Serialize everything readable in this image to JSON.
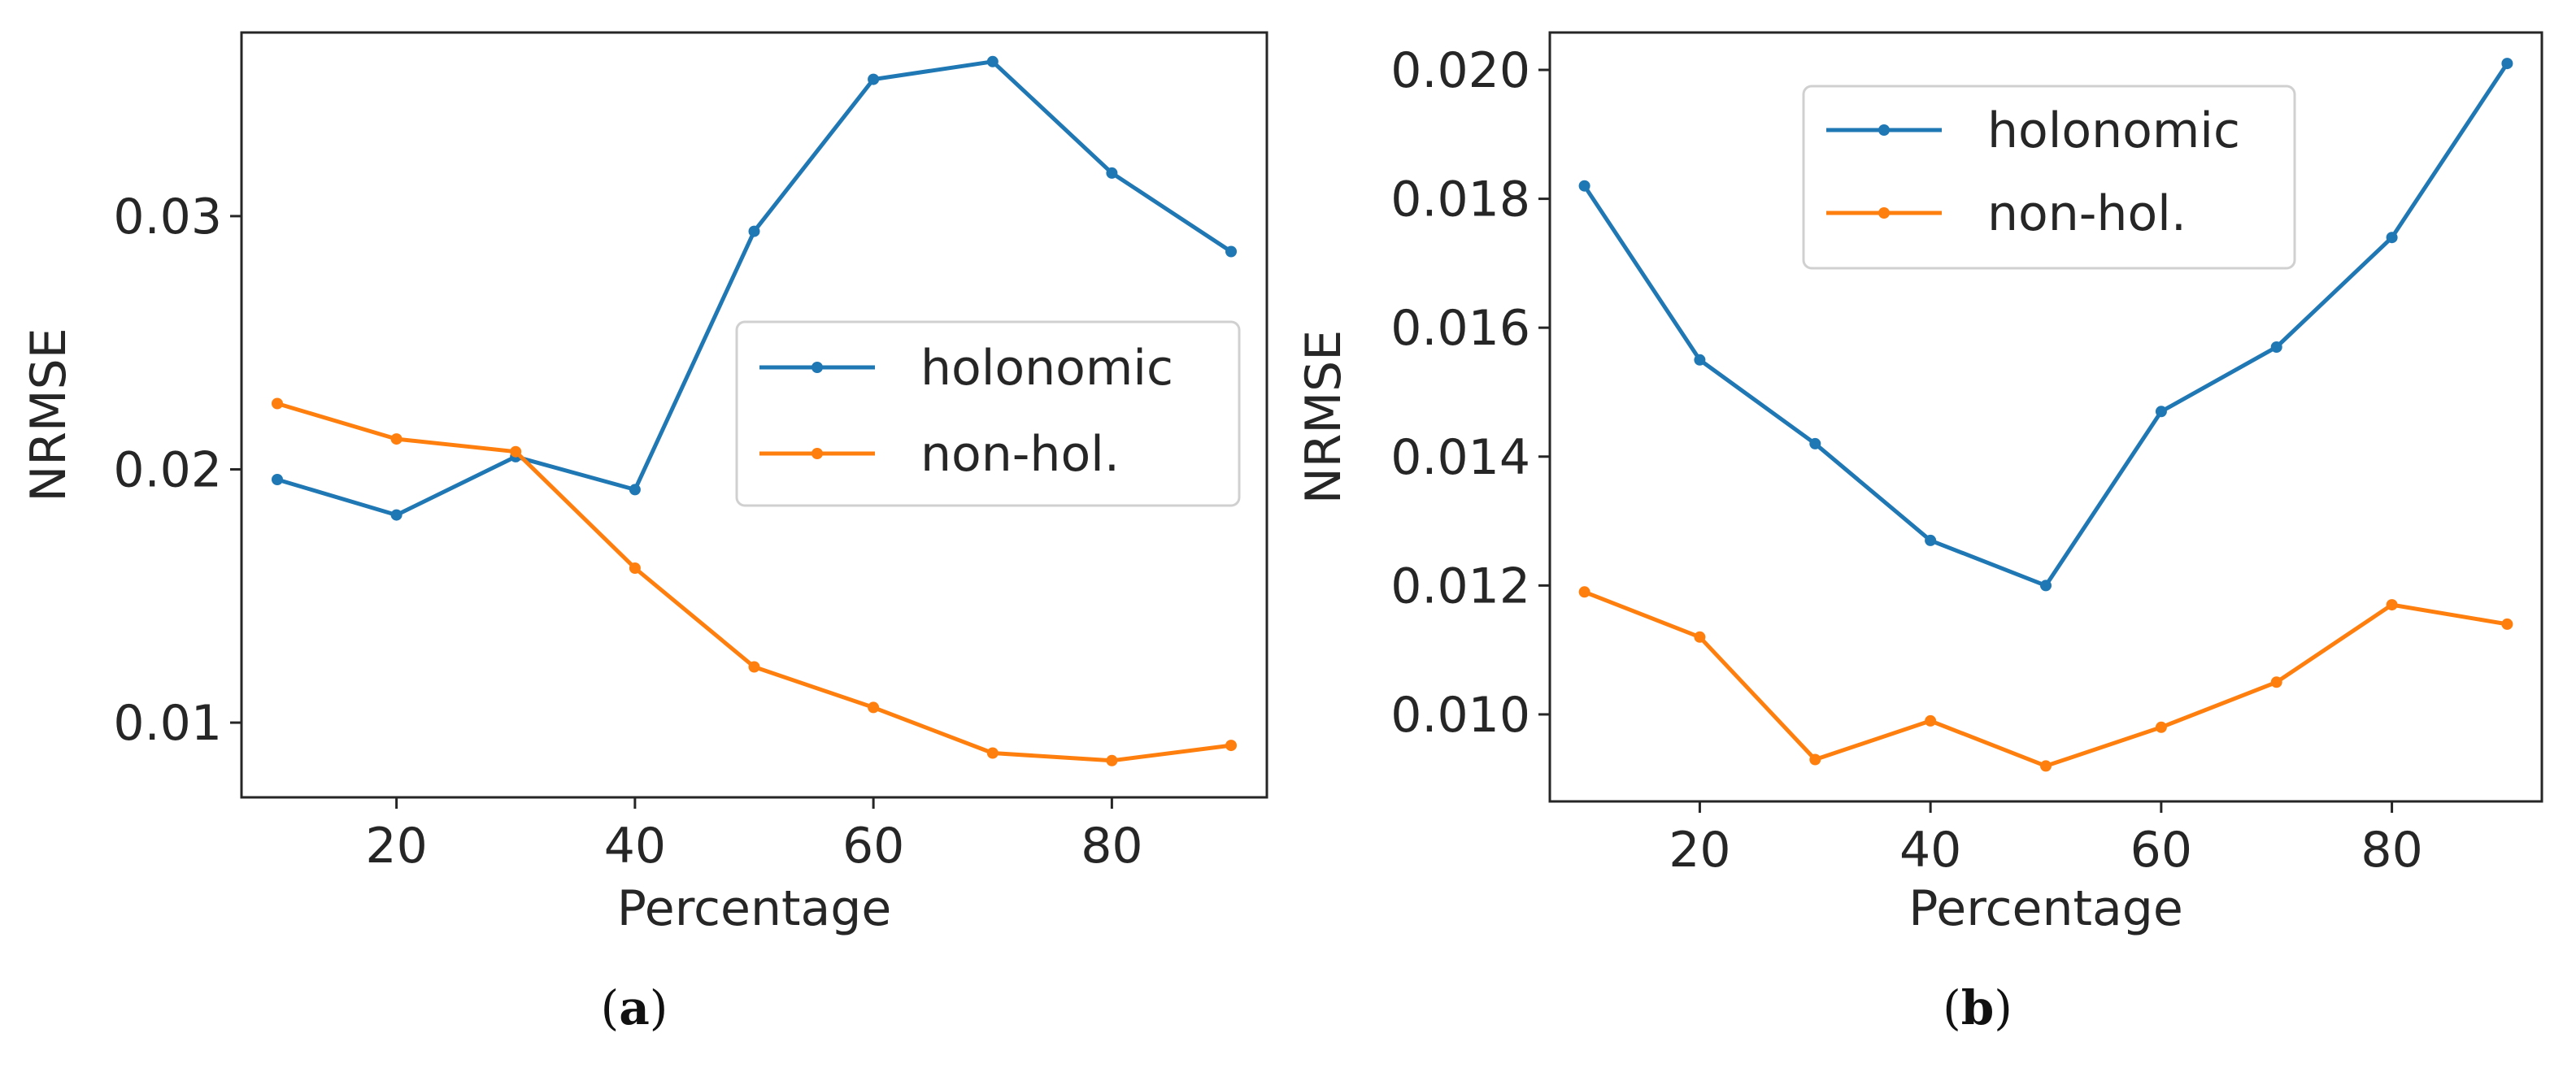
{
  "chart_data": [
    {
      "type": "line",
      "panel": "a",
      "caption": "(a)",
      "xlabel": "Percentage",
      "ylabel": "NRMSE",
      "x": [
        10,
        20,
        30,
        40,
        50,
        60,
        70,
        80,
        90
      ],
      "xlim": [
        7,
        93
      ],
      "ylim": [
        0.00705,
        0.03725
      ],
      "xticks": [
        20,
        40,
        60,
        80
      ],
      "yticks": [
        0.01,
        0.02,
        0.03
      ],
      "ytick_labels": [
        "0.01",
        "0.02",
        "0.03"
      ],
      "legend_loc": "center-right",
      "series": [
        {
          "name": "holonomic",
          "color": "#1f77b4",
          "values": [
            0.0196,
            0.0182,
            0.0205,
            0.0192,
            0.0294,
            0.0354,
            0.0361,
            0.0317,
            0.0286
          ]
        },
        {
          "name": "non-hol.",
          "color": "#ff7f0e",
          "values": [
            0.0226,
            0.0212,
            0.0207,
            0.0161,
            0.0122,
            0.0106,
            0.0088,
            0.0085,
            0.0091
          ]
        }
      ]
    },
    {
      "type": "line",
      "panel": "b",
      "caption": "(b)",
      "xlabel": "Percentage",
      "ylabel": "NRMSE",
      "x": [
        10,
        20,
        30,
        40,
        50,
        60,
        70,
        80,
        90
      ],
      "xlim": [
        7,
        93
      ],
      "ylim": [
        0.00865,
        0.02058
      ],
      "xticks": [
        20,
        40,
        60,
        80
      ],
      "yticks": [
        0.01,
        0.012,
        0.014,
        0.016,
        0.018,
        0.02
      ],
      "ytick_labels": [
        "0.010",
        "0.012",
        "0.014",
        "0.016",
        "0.018",
        "0.020"
      ],
      "legend_loc": "upper-center",
      "series": [
        {
          "name": "holonomic",
          "color": "#1f77b4",
          "values": [
            0.0182,
            0.0155,
            0.0142,
            0.0127,
            0.012,
            0.0147,
            0.0157,
            0.0174,
            0.0201
          ]
        },
        {
          "name": "non-hol.",
          "color": "#ff7f0e",
          "values": [
            0.0119,
            0.0112,
            0.0093,
            0.0099,
            0.0092,
            0.0098,
            0.0105,
            0.0117,
            0.0114
          ]
        }
      ]
    }
  ]
}
